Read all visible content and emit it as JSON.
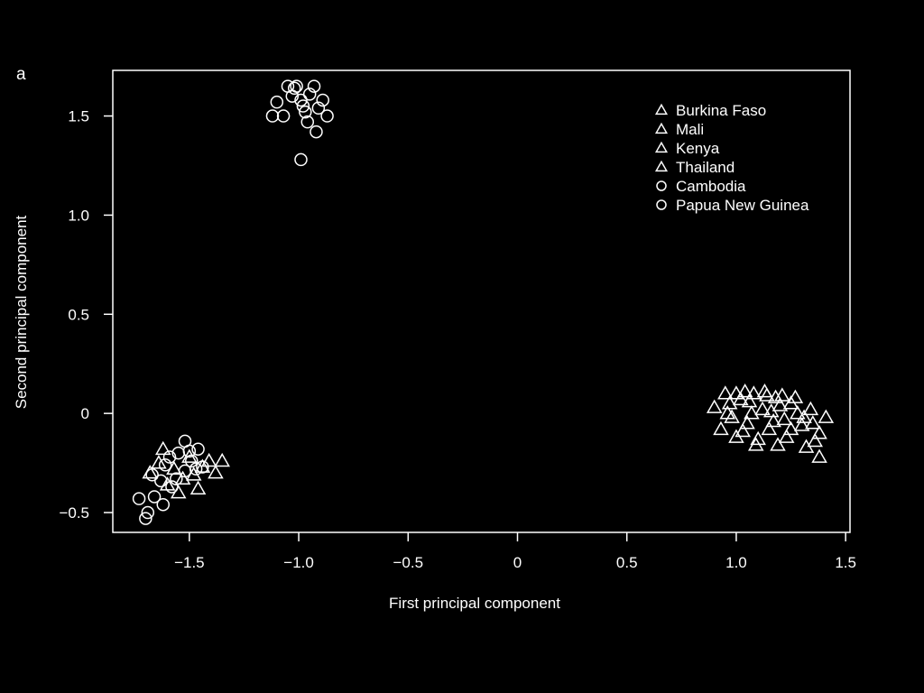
{
  "panel_label": "a",
  "chart_data": {
    "type": "scatter",
    "title": "",
    "xlabel": "First principal component",
    "ylabel": "Second principal component",
    "xlim": [
      -1.85,
      1.52
    ],
    "ylim": [
      -0.6,
      1.73
    ],
    "xticks": [
      -1.5,
      -1.0,
      -0.5,
      0,
      0.5,
      1.0,
      1.5
    ],
    "xtick_labels": [
      "−1.5",
      "−1.0",
      "−0.5",
      "0",
      "0.5",
      "1.0",
      "1.5"
    ],
    "yticks": [
      -0.5,
      0,
      0.5,
      1.0,
      1.5
    ],
    "ytick_labels": [
      "−0.5",
      "0",
      "0.5",
      "1.0",
      "1.5"
    ],
    "grid": false,
    "legend_position": "top-right",
    "series": [
      {
        "name": "Burkina Faso",
        "marker": "triangle",
        "points": [
          [
            0.9,
            0.03
          ],
          [
            0.95,
            0.1
          ],
          [
            0.98,
            -0.02
          ],
          [
            1.02,
            0.07
          ],
          [
            1.05,
            -0.05
          ],
          [
            1.08,
            0.1
          ],
          [
            1.12,
            0.02
          ],
          [
            1.15,
            -0.08
          ],
          [
            1.18,
            0.08
          ],
          [
            1.22,
            -0.03
          ],
          [
            1.25,
            0.05
          ],
          [
            1.3,
            -0.06
          ],
          [
            1.34,
            0.02
          ],
          [
            1.38,
            -0.1
          ]
        ]
      },
      {
        "name": "Mali",
        "marker": "triangle",
        "points": [
          [
            0.93,
            -0.08
          ],
          [
            0.97,
            0.05
          ],
          [
            1.0,
            -0.12
          ],
          [
            1.04,
            0.11
          ],
          [
            1.07,
            0.0
          ],
          [
            1.1,
            -0.13
          ],
          [
            1.14,
            0.09
          ],
          [
            1.17,
            -0.04
          ],
          [
            1.2,
            0.04
          ],
          [
            1.23,
            -0.12
          ],
          [
            1.27,
            0.08
          ],
          [
            1.31,
            -0.02
          ],
          [
            1.36,
            -0.14
          ],
          [
            1.41,
            -0.02
          ]
        ]
      },
      {
        "name": "Kenya",
        "marker": "triangle",
        "points": [
          [
            0.96,
            0.0
          ],
          [
            1.0,
            0.1
          ],
          [
            1.03,
            -0.09
          ],
          [
            1.06,
            0.06
          ],
          [
            1.09,
            -0.16
          ],
          [
            1.13,
            0.11
          ],
          [
            1.16,
            0.01
          ],
          [
            1.19,
            -0.16
          ],
          [
            1.21,
            0.09
          ],
          [
            1.25,
            -0.08
          ],
          [
            1.28,
            0.0
          ],
          [
            1.32,
            -0.17
          ],
          [
            1.35,
            -0.05
          ],
          [
            1.38,
            -0.22
          ]
        ]
      },
      {
        "name": "Thailand",
        "marker": "triangle",
        "points": [
          [
            -1.68,
            -0.3
          ],
          [
            -1.64,
            -0.25
          ],
          [
            -1.6,
            -0.36
          ],
          [
            -1.57,
            -0.28
          ],
          [
            -1.53,
            -0.33
          ],
          [
            -1.5,
            -0.22
          ],
          [
            -1.46,
            -0.38
          ],
          [
            -1.44,
            -0.27
          ],
          [
            -1.41,
            -0.24
          ],
          [
            -1.38,
            -0.3
          ],
          [
            -1.35,
            -0.24
          ],
          [
            -1.55,
            -0.4
          ],
          [
            -1.62,
            -0.18
          ],
          [
            -1.48,
            -0.31
          ]
        ]
      },
      {
        "name": "Cambodia",
        "marker": "circle",
        "points": [
          [
            -1.73,
            -0.43
          ],
          [
            -1.69,
            -0.5
          ],
          [
            -1.66,
            -0.42
          ],
          [
            -1.63,
            -0.34
          ],
          [
            -1.61,
            -0.26
          ],
          [
            -1.58,
            -0.37
          ],
          [
            -1.55,
            -0.2
          ],
          [
            -1.52,
            -0.29
          ],
          [
            -1.49,
            -0.24
          ],
          [
            -1.46,
            -0.18
          ],
          [
            -1.44,
            -0.27
          ],
          [
            -1.59,
            -0.22
          ],
          [
            -1.52,
            -0.14
          ],
          [
            -1.67,
            -0.31
          ],
          [
            -1.56,
            -0.33
          ],
          [
            -1.5,
            -0.19
          ],
          [
            -1.47,
            -0.28
          ],
          [
            -1.62,
            -0.46
          ],
          [
            -1.7,
            -0.53
          ]
        ]
      },
      {
        "name": "Papua New Guinea",
        "marker": "circle",
        "points": [
          [
            -1.12,
            1.5
          ],
          [
            -1.1,
            1.57
          ],
          [
            -1.07,
            1.5
          ],
          [
            -1.05,
            1.65
          ],
          [
            -1.03,
            1.6
          ],
          [
            -1.01,
            1.65
          ],
          [
            -0.99,
            1.58
          ],
          [
            -0.97,
            1.52
          ],
          [
            -0.95,
            1.61
          ],
          [
            -0.93,
            1.65
          ],
          [
            -0.91,
            1.54
          ],
          [
            -0.89,
            1.58
          ],
          [
            -0.87,
            1.5
          ],
          [
            -0.96,
            1.47
          ],
          [
            -0.92,
            1.42
          ],
          [
            -0.99,
            1.28
          ],
          [
            -1.02,
            1.64
          ],
          [
            -0.98,
            1.55
          ]
        ]
      }
    ]
  }
}
